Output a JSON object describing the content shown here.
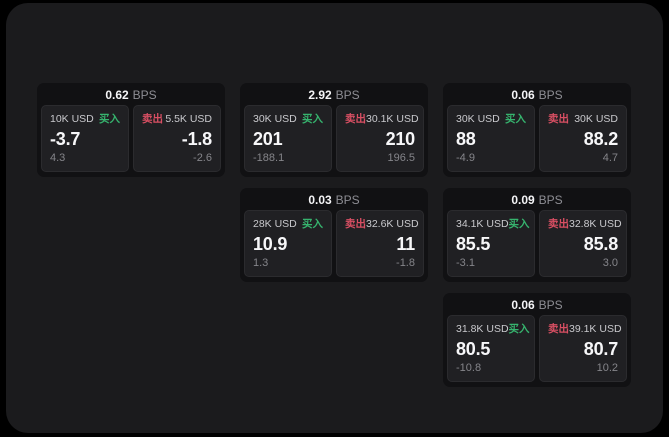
{
  "labels": {
    "bps_unit": "BPS",
    "buy": "买入",
    "sell": "卖出"
  },
  "colors": {
    "buy_green": "#36b46e",
    "sell_red": "#d94f63",
    "panel_bg": "#1b1b1d",
    "card_bg": "#111113",
    "tile_bg": "#202023"
  },
  "cards": [
    {
      "bps": "0.62",
      "row": 1,
      "col": 1,
      "buy": {
        "amount": "10K USD",
        "price": "-3.7",
        "delta": "4.3"
      },
      "sell": {
        "amount": "5.5K USD",
        "price": "-1.8",
        "delta": "-2.6"
      }
    },
    {
      "bps": "2.92",
      "row": 1,
      "col": 2,
      "buy": {
        "amount": "30K USD",
        "price": "201",
        "delta": "-188.1"
      },
      "sell": {
        "amount": "30.1K USD",
        "price": "210",
        "delta": "196.5"
      }
    },
    {
      "bps": "0.06",
      "row": 1,
      "col": 3,
      "buy": {
        "amount": "30K USD",
        "price": "88",
        "delta": "-4.9"
      },
      "sell": {
        "amount": "30K USD",
        "price": "88.2",
        "delta": "4.7"
      }
    },
    {
      "bps": "0.03",
      "row": 2,
      "col": 2,
      "buy": {
        "amount": "28K USD",
        "price": "10.9",
        "delta": "1.3"
      },
      "sell": {
        "amount": "32.6K USD",
        "price": "11",
        "delta": "-1.8"
      }
    },
    {
      "bps": "0.09",
      "row": 2,
      "col": 3,
      "buy": {
        "amount": "34.1K USD",
        "price": "85.5",
        "delta": "-3.1"
      },
      "sell": {
        "amount": "32.8K USD",
        "price": "85.8",
        "delta": "3.0"
      }
    },
    {
      "bps": "0.06",
      "row": 3,
      "col": 3,
      "buy": {
        "amount": "31.8K USD",
        "price": "80.5",
        "delta": "-10.8"
      },
      "sell": {
        "amount": "39.1K USD",
        "price": "80.7",
        "delta": "10.2"
      }
    }
  ]
}
